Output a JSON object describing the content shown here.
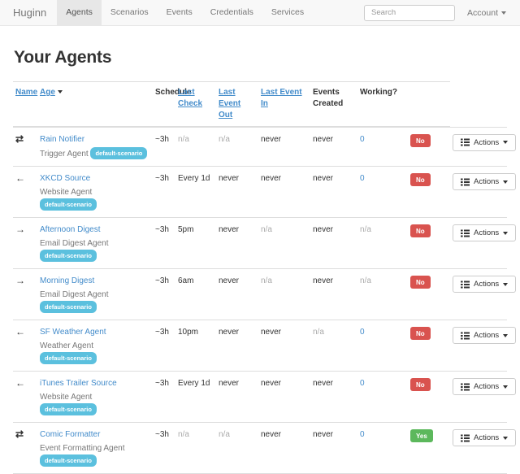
{
  "navbar": {
    "brand": "Huginn",
    "items": [
      {
        "label": "Agents",
        "active": true
      },
      {
        "label": "Scenarios",
        "active": false
      },
      {
        "label": "Events",
        "active": false
      },
      {
        "label": "Credentials",
        "active": false
      },
      {
        "label": "Services",
        "active": false
      }
    ],
    "search_placeholder": "Search",
    "account_label": "Account"
  },
  "page": {
    "title": "Your Agents"
  },
  "table": {
    "headers": [
      {
        "label": "Name",
        "link": true,
        "sorted": false
      },
      {
        "label": "Age",
        "link": true,
        "sorted": true
      },
      {
        "label": "Schedule",
        "link": false,
        "sorted": false
      },
      {
        "label": "Last Check",
        "link": true,
        "sorted": false
      },
      {
        "label": "Last Event Out",
        "link": true,
        "sorted": false
      },
      {
        "label": "Last Event In",
        "link": true,
        "sorted": false
      },
      {
        "label": "Events Created",
        "link": false,
        "sorted": false
      },
      {
        "label": "Working?",
        "link": false,
        "sorted": false
      }
    ],
    "actions_label": "Actions",
    "scenario_badge_color": "#5bc0de",
    "working_colors": {
      "danger": "#d9534f",
      "success": "#5cb85c"
    },
    "rows": [
      {
        "direction_icon": "exchange-icon",
        "direction_glyph": "⇄",
        "name": "Rain Notifier",
        "type": "Trigger Agent",
        "scenario": "default-scenario",
        "age": "~3h",
        "schedule": {
          "text": "n/a",
          "muted": true
        },
        "last_check": {
          "text": "n/a",
          "muted": true
        },
        "last_event_out": {
          "text": "never",
          "muted": false
        },
        "last_event_in": {
          "text": "never",
          "muted": false
        },
        "events_created": {
          "text": "0",
          "muted": false,
          "link": true
        },
        "working": {
          "text": "No",
          "status": "danger"
        }
      },
      {
        "direction_icon": "arrow-left-icon",
        "direction_glyph": "←",
        "name": "XKCD Source",
        "type": "Website Agent",
        "scenario": "default-scenario",
        "age": "~3h",
        "schedule": {
          "text": "Every 1d",
          "muted": false
        },
        "last_check": {
          "text": "never",
          "muted": false
        },
        "last_event_out": {
          "text": "never",
          "muted": false
        },
        "last_event_in": {
          "text": "never",
          "muted": false
        },
        "events_created": {
          "text": "0",
          "muted": false,
          "link": true
        },
        "working": {
          "text": "No",
          "status": "danger"
        }
      },
      {
        "direction_icon": "arrow-right-icon",
        "direction_glyph": "→",
        "name": "Afternoon Digest",
        "type": "Email Digest Agent",
        "scenario": "default-scenario",
        "age": "~3h",
        "schedule": {
          "text": "5pm",
          "muted": false
        },
        "last_check": {
          "text": "never",
          "muted": false
        },
        "last_event_out": {
          "text": "n/a",
          "muted": true
        },
        "last_event_in": {
          "text": "never",
          "muted": false
        },
        "events_created": {
          "text": "n/a",
          "muted": true,
          "link": false
        },
        "working": {
          "text": "No",
          "status": "danger"
        }
      },
      {
        "direction_icon": "arrow-right-icon",
        "direction_glyph": "→",
        "name": "Morning Digest",
        "type": "Email Digest Agent",
        "scenario": "default-scenario",
        "age": "~3h",
        "schedule": {
          "text": "6am",
          "muted": false
        },
        "last_check": {
          "text": "never",
          "muted": false
        },
        "last_event_out": {
          "text": "n/a",
          "muted": true
        },
        "last_event_in": {
          "text": "never",
          "muted": false
        },
        "events_created": {
          "text": "n/a",
          "muted": true,
          "link": false
        },
        "working": {
          "text": "No",
          "status": "danger"
        }
      },
      {
        "direction_icon": "arrow-left-icon",
        "direction_glyph": "←",
        "name": "SF Weather Agent",
        "type": "Weather Agent",
        "scenario": "default-scenario",
        "age": "~3h",
        "schedule": {
          "text": "10pm",
          "muted": false
        },
        "last_check": {
          "text": "never",
          "muted": false
        },
        "last_event_out": {
          "text": "never",
          "muted": false
        },
        "last_event_in": {
          "text": "n/a",
          "muted": true
        },
        "events_created": {
          "text": "0",
          "muted": false,
          "link": true
        },
        "working": {
          "text": "No",
          "status": "danger"
        }
      },
      {
        "direction_icon": "arrow-left-icon",
        "direction_glyph": "←",
        "name": "iTunes Trailer Source",
        "type": "Website Agent",
        "scenario": "default-scenario",
        "age": "~3h",
        "schedule": {
          "text": "Every 1d",
          "muted": false
        },
        "last_check": {
          "text": "never",
          "muted": false
        },
        "last_event_out": {
          "text": "never",
          "muted": false
        },
        "last_event_in": {
          "text": "never",
          "muted": false
        },
        "events_created": {
          "text": "0",
          "muted": false,
          "link": true
        },
        "working": {
          "text": "No",
          "status": "danger"
        }
      },
      {
        "direction_icon": "exchange-icon",
        "direction_glyph": "⇄",
        "name": "Comic Formatter",
        "type": "Event Formatting Agent",
        "scenario": "default-scenario",
        "age": "~3h",
        "schedule": {
          "text": "n/a",
          "muted": true
        },
        "last_check": {
          "text": "n/a",
          "muted": true
        },
        "last_event_out": {
          "text": "never",
          "muted": false
        },
        "last_event_in": {
          "text": "never",
          "muted": false
        },
        "events_created": {
          "text": "0",
          "muted": false,
          "link": true
        },
        "working": {
          "text": "Yes",
          "status": "success"
        }
      }
    ]
  }
}
